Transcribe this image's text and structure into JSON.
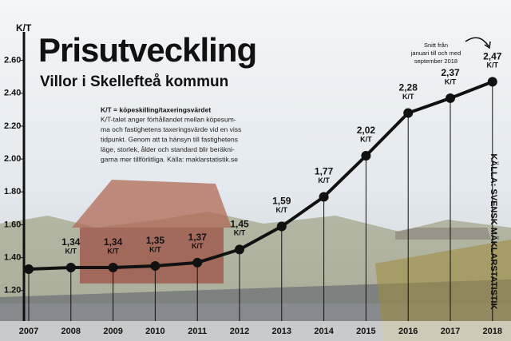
{
  "chart_data": {
    "type": "line",
    "title": "Prisutveckling",
    "subtitle": "Villor i Skellefteå kommun",
    "y_label": "K/T",
    "unit": "K/T",
    "note_title": "K/T = köpeskilling/taxeringsvärdet",
    "note_lines": [
      "K/T-talet anger förhållandet mellan köpesum-",
      "ma och fastighetens taxeringsvärde vid en viss",
      "tidpunkt. Genom att ta hänsyn till fastighetens",
      "läge, storlek, ålder och standard blir beräkni-",
      "garna mer tillförlitliga. Källa: maklarstatistik.se"
    ],
    "annotation_lines": [
      "Snitt från",
      "januari till och med",
      "september 2018"
    ],
    "source": "KÄLLA: SVENSK MÄKLARSTATISTIK",
    "categories": [
      "2007",
      "2008",
      "2009",
      "2010",
      "2011",
      "2012",
      "2013",
      "2014",
      "2015",
      "2016",
      "2017",
      "2018"
    ],
    "values": [
      1.33,
      1.34,
      1.34,
      1.35,
      1.37,
      1.45,
      1.59,
      1.77,
      2.02,
      2.28,
      2.37,
      2.47
    ],
    "value_labels": [
      null,
      "1,34",
      "1,34",
      "1,35",
      "1,37",
      "1,45",
      "1,59",
      "1,77",
      "2,02",
      "2,28",
      "2,37",
      "2,47"
    ],
    "color": "#111111",
    "ylim": [
      1.0,
      2.7
    ],
    "yticks": [
      {
        "value": 1.2,
        "label": "1.20"
      },
      {
        "value": 1.4,
        "label": "1.40"
      },
      {
        "value": 1.6,
        "label": "1.60"
      },
      {
        "value": 1.8,
        "label": "1.80"
      },
      {
        "value": 2.0,
        "label": "2.00"
      },
      {
        "value": 2.2,
        "label": "2.20"
      },
      {
        "value": 2.4,
        "label": "2.40"
      },
      {
        "value": 2.6,
        "label": "2.60"
      }
    ]
  }
}
